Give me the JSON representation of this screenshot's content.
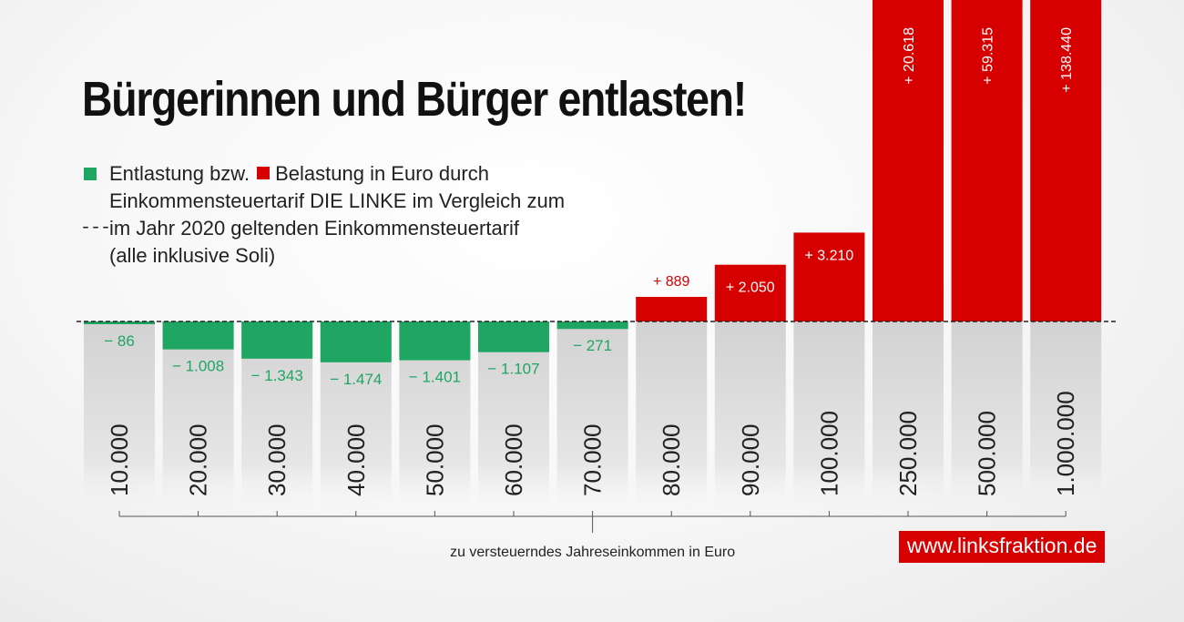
{
  "header": {
    "title": "Bürgerinnen und Bürger entlasten!"
  },
  "legend": {
    "entlastung": "Entlastung bzw.",
    "belastung": "Belastung in Euro durch",
    "line2": "Einkommensteuertarif DIE LINKE im Vergleich zum",
    "line3": "im Jahr 2020 geltenden Einkommensteuertarif",
    "line4": "(alle inklusive Soli)",
    "dash_symbol": "---"
  },
  "footer": {
    "url": "www.linksfraktion.de"
  },
  "colors": {
    "positive": "#d70000",
    "negative": "#1ea662",
    "text": "#222222",
    "label_positive": "#ffffff"
  },
  "chart_data": {
    "type": "bar",
    "title": "Bürgerinnen und Bürger entlasten!",
    "xlabel": "zu versteuerndes Jahreseinkommen in Euro",
    "ylabel": "Entlastung bzw. Belastung in Euro",
    "categories": [
      "10.000",
      "20.000",
      "30.000",
      "40.000",
      "50.000",
      "60.000",
      "70.000",
      "80.000",
      "90.000",
      "100.000",
      "250.000",
      "500.000",
      "1.000.000"
    ],
    "values": [
      -86,
      -1008,
      -1343,
      -1474,
      -1401,
      -1107,
      -271,
      889,
      2050,
      3210,
      20618,
      59315,
      138440
    ],
    "labels": [
      "− 86",
      "− 1.008",
      "− 1.343",
      "− 1.474",
      "− 1.401",
      "− 1.107",
      "− 271",
      "+ 889",
      "+ 2.050",
      "+ 3.210",
      "+ 20.618",
      "+ 59.315",
      "+ 138.440"
    ],
    "baseline": 0,
    "truncated_from": 20618
  }
}
